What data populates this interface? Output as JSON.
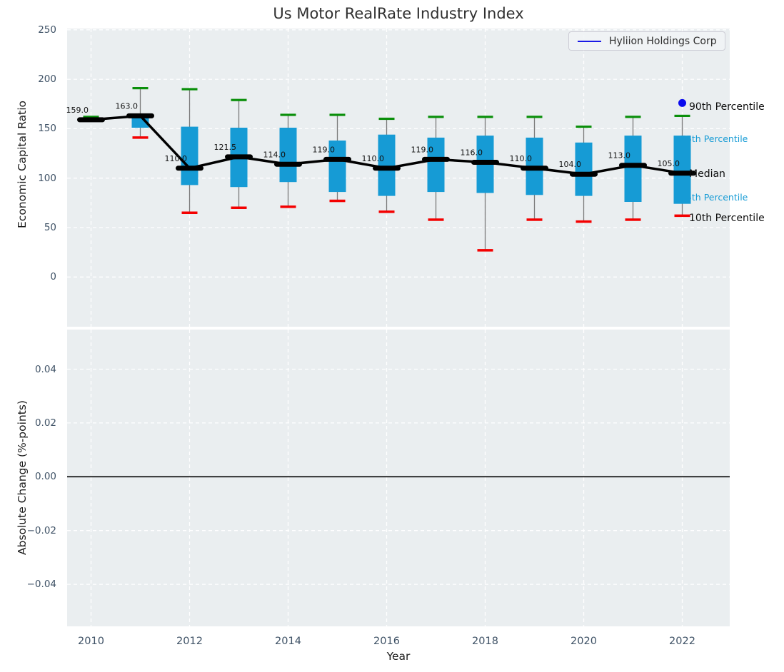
{
  "title": "Us Motor RealRate Industry Index",
  "legend": {
    "label": "Hyliion Holdings Corp",
    "line_color": "#1a1ae6"
  },
  "xlabel": "Year",
  "top_axis": {
    "ylabel": "Economic Capital Ratio",
    "tick_values": [
      250,
      200,
      150,
      100,
      50,
      0
    ]
  },
  "bottom_axis": {
    "ylabel": "Absolute Change (%-points)",
    "tick_labels": [
      "0.04",
      "0.02",
      "0.00",
      "−0.02",
      "−0.04"
    ],
    "tick_values": [
      0.04,
      0.02,
      0.0,
      -0.02,
      -0.04
    ]
  },
  "annotations": [
    {
      "id": "p90",
      "text": "90th Percentile",
      "style": "black"
    },
    {
      "id": "p75",
      "text": "75th Percentile",
      "style": "cyan"
    },
    {
      "id": "median",
      "text": "Median",
      "style": "black"
    },
    {
      "id": "p25",
      "text": "25th Percentile",
      "style": "cyan"
    },
    {
      "id": "p10",
      "text": "10th Percentile",
      "style": "black"
    }
  ],
  "colors": {
    "plot_bg": "#eaeef0",
    "grid": "#ffffff",
    "box": "#169bd5",
    "p90_cap": "#0a8f0a",
    "p10_cap": "#f40000",
    "whisker": "#7a7a7a",
    "median": "#000000",
    "highlight_dot": "#0b0bee",
    "tick_label": "#3f5266",
    "annotation_black": "#0d0d0d",
    "annotation_cyan": "#169bd5",
    "zero_line": "#000000"
  },
  "chart_data": {
    "type": "boxplot+line",
    "x": [
      2010,
      2011,
      2012,
      2013,
      2014,
      2015,
      2016,
      2017,
      2018,
      2019,
      2020,
      2021,
      2022
    ],
    "xticks_shown": [
      2010,
      2012,
      2014,
      2016,
      2018,
      2020,
      2022
    ],
    "top_panel": {
      "ylabel": "Economic Capital Ratio",
      "series": [
        {
          "name": "Median",
          "values": [
            159.0,
            163.0,
            110.0,
            121.5,
            114.0,
            119.0,
            110.0,
            119.0,
            116.0,
            110.0,
            104.0,
            113.0,
            105.0
          ],
          "labels": [
            "159.0",
            "163.0",
            "110.0",
            "121.5",
            "114.0",
            "119.0",
            "110.0",
            "119.0",
            "116.0",
            "110.0",
            "104.0",
            "113.0",
            "105.0"
          ]
        },
        {
          "name": "90th Percentile",
          "values": [
            162,
            191,
            190,
            179,
            164,
            164,
            160,
            162,
            162,
            162,
            152,
            162,
            163
          ]
        },
        {
          "name": "75th Percentile",
          "values": [
            null,
            161,
            152,
            151,
            151,
            138,
            144,
            141,
            143,
            141,
            136,
            143,
            143
          ]
        },
        {
          "name": "25th Percentile",
          "values": [
            null,
            151,
            93,
            91,
            96,
            86,
            82,
            86,
            85,
            83,
            82,
            76,
            74
          ]
        },
        {
          "name": "10th Percentile",
          "values": [
            null,
            141,
            65,
            70,
            71,
            77,
            66,
            58,
            27,
            58,
            56,
            58,
            62
          ]
        }
      ],
      "highlight_point": {
        "name": "Hyliion Holdings Corp",
        "x": 2022,
        "y": 176
      }
    },
    "bottom_panel": {
      "ylabel": "Absolute Change (%-points)",
      "zero_line": 0.0,
      "series": []
    }
  }
}
